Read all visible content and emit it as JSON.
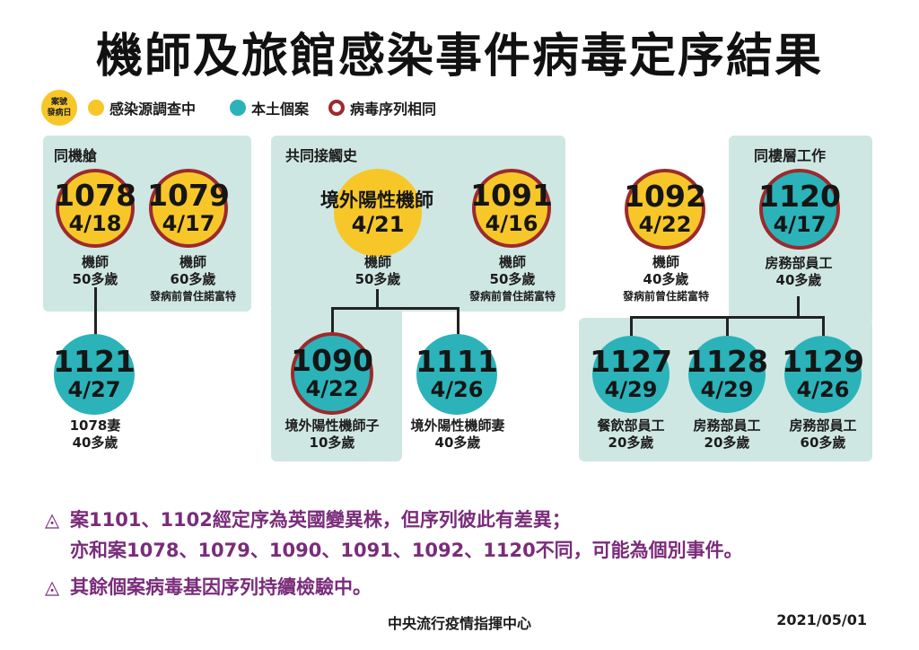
{
  "title": "機師及旅館感染事件病毒定序結果",
  "legend": {
    "badge_line1": "案號",
    "badge_line2": "發病日",
    "items": [
      "感染源調查中",
      "本土個案",
      "病毒序列相同"
    ]
  },
  "groups": [
    {
      "label": "同機艙"
    },
    {
      "label": "共同接觸史"
    },
    {
      "label": "同樓層工作"
    }
  ],
  "cases": [
    {
      "id": "1078",
      "date": "4/18",
      "caption": [
        "機師",
        "50多歲"
      ]
    },
    {
      "id": "1079",
      "date": "4/17",
      "caption": [
        "機師",
        "60多歲",
        "發病前曾住諾富特"
      ]
    },
    {
      "id": "1121",
      "date": "4/27",
      "caption": [
        "1078妻",
        "40多歲"
      ]
    },
    {
      "name": "境外陽性機師",
      "date": "4/21",
      "caption": [
        "機師",
        "50多歲"
      ]
    },
    {
      "id": "1091",
      "date": "4/16",
      "caption": [
        "機師",
        "50多歲",
        "發病前曾住諾富特"
      ]
    },
    {
      "id": "1090",
      "date": "4/22",
      "caption": [
        "境外陽性機師子",
        "10多歲"
      ]
    },
    {
      "id": "1111",
      "date": "4/26",
      "caption": [
        "境外陽性機師妻",
        "40多歲"
      ]
    },
    {
      "id": "1092",
      "date": "4/22",
      "caption": [
        "機師",
        "40多歲",
        "發病前曾住諾富特"
      ]
    },
    {
      "id": "1120",
      "date": "4/17",
      "caption": [
        "房務部員工",
        "40多歲"
      ]
    },
    {
      "id": "1127",
      "date": "4/29",
      "caption": [
        "餐飲部員工",
        "20多歲"
      ]
    },
    {
      "id": "1128",
      "date": "4/29",
      "caption": [
        "房務部員工",
        "20多歲"
      ]
    },
    {
      "id": "1129",
      "date": "4/26",
      "caption": [
        "房務部員工",
        "60多歲"
      ]
    }
  ],
  "notes": {
    "triangle": "◬",
    "note1_line1": "案1101、1102經定序為英國變異株，但序列彼此有差異；",
    "note1_line2": "亦和案1078、1079、1090、1091、1092、1120不同，可能為個別事件。",
    "note2": "其餘個案病毒基因序列持續檢驗中。"
  },
  "footer": {
    "org": "中央流行疫情指揮中心",
    "date": "2021/05/01"
  }
}
